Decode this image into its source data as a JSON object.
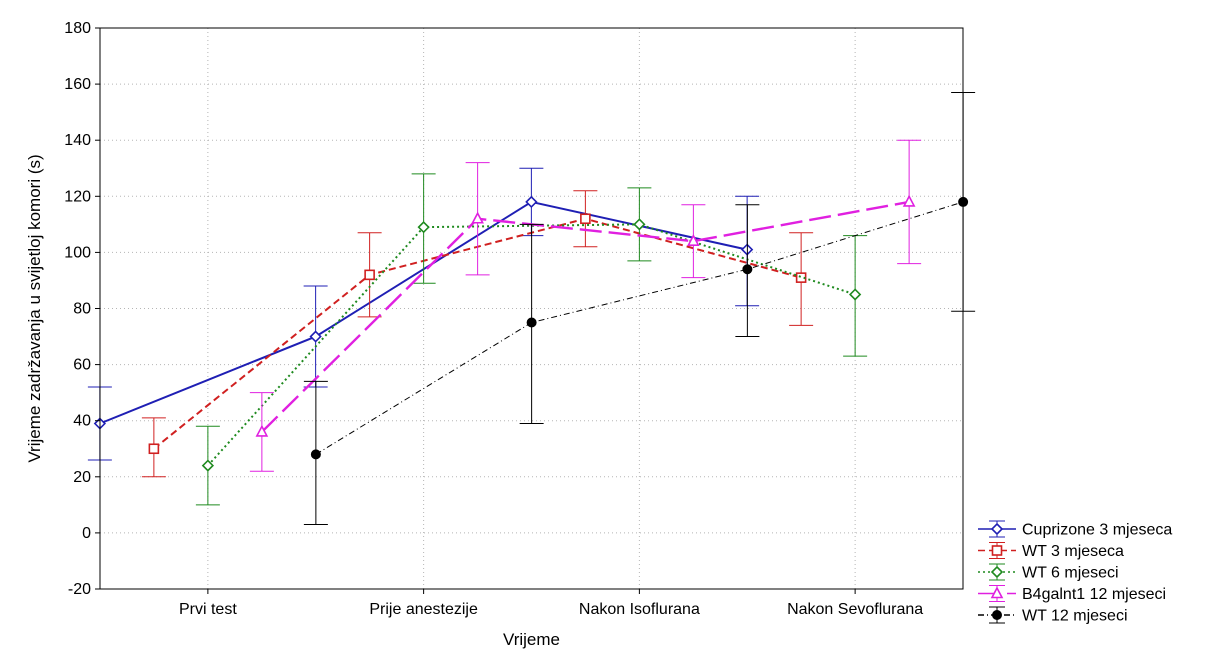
{
  "chart_data": {
    "type": "line",
    "xlabel": "Vrijeme",
    "ylabel": "Vrijeme zadržavanja u svijetloj komori (s)",
    "categories": [
      "Prvi test",
      "Prije anestezije",
      "Nakon Isoflurana",
      "Nakon Sevoflurana"
    ],
    "ylim": [
      -20,
      180
    ],
    "yticks": [
      -20,
      0,
      20,
      40,
      60,
      80,
      100,
      120,
      140,
      160,
      180
    ],
    "grid": true,
    "legend_position": "bottom-right",
    "error_bars": true,
    "series": [
      {
        "name": "Cuprizone 3 mjeseca",
        "color": "#1f1fb4",
        "dash": "solid",
        "marker": "diamond-open",
        "values": [
          39,
          70,
          118,
          101
        ],
        "lower": [
          26,
          52,
          106,
          81
        ],
        "upper": [
          52,
          88,
          130,
          120
        ]
      },
      {
        "name": "WT 3 mjeseca",
        "color": "#d02020",
        "dash": "dash",
        "marker": "square-open",
        "values": [
          30,
          92,
          112,
          91
        ],
        "lower": [
          20,
          77,
          102,
          74
        ],
        "upper": [
          41,
          107,
          122,
          107
        ]
      },
      {
        "name": "WT 6 mjeseci",
        "color": "#1f8a1f",
        "dash": "dot",
        "marker": "diamond-open",
        "values": [
          24,
          109,
          110,
          85
        ],
        "lower": [
          10,
          89,
          97,
          63
        ],
        "upper": [
          38,
          128,
          123,
          106
        ]
      },
      {
        "name": "B4galnt1 12 mjeseci",
        "color": "#e020e0",
        "dash": "longdash",
        "marker": "triangle-open",
        "values": [
          36,
          112,
          104,
          118
        ],
        "lower": [
          22,
          92,
          91,
          96
        ],
        "upper": [
          50,
          132,
          117,
          140
        ]
      },
      {
        "name": "WT 12 mjeseci",
        "color": "#000000",
        "dash": "dashdot",
        "marker": "circle-filled",
        "values": [
          28,
          75,
          94,
          118
        ],
        "lower": [
          3,
          39,
          70,
          79
        ],
        "upper": [
          54,
          110,
          117,
          157
        ]
      }
    ]
  }
}
